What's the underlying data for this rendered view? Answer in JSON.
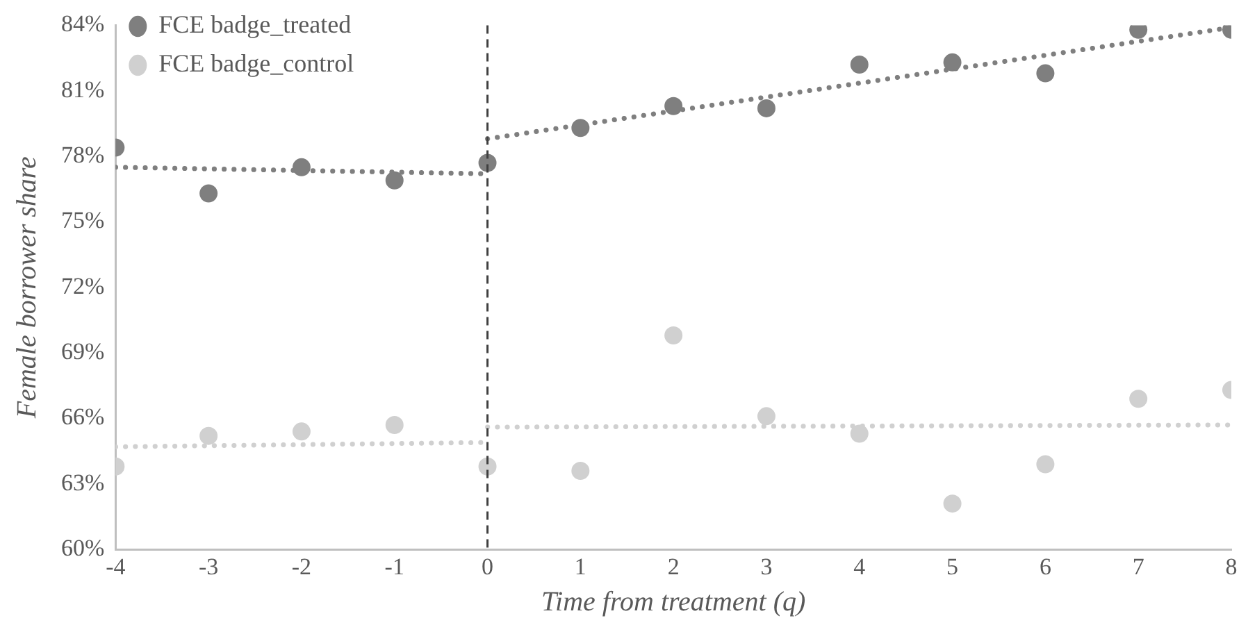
{
  "chart_data": {
    "type": "scatter",
    "xlabel": "Time from treatment (q)",
    "ylabel": "Female borrower share",
    "x": [
      -4,
      -3,
      -2,
      -1,
      0,
      1,
      2,
      3,
      4,
      5,
      6,
      7,
      8
    ],
    "series": [
      {
        "name": "FCE badge_treated",
        "color": "#7f7f7f",
        "values": [
          78.4,
          76.3,
          77.5,
          76.9,
          77.7,
          79.3,
          80.3,
          80.2,
          82.2,
          82.3,
          81.8,
          83.8,
          83.8
        ]
      },
      {
        "name": "FCE badge_control",
        "color": "#d0d0d0",
        "values": [
          63.8,
          65.2,
          65.4,
          65.7,
          63.8,
          63.6,
          69.8,
          66.1,
          65.3,
          62.1,
          63.9,
          66.9,
          67.3
        ]
      },
      {
        "type": "line",
        "color": "#7f7f7f",
        "x": [
          -4,
          0
        ],
        "values": [
          77.5,
          77.2
        ],
        "line_style": "dotted",
        "marker": "none"
      },
      {
        "type": "line",
        "color": "#7f7f7f",
        "x": [
          0,
          8
        ],
        "values": [
          78.8,
          83.9
        ],
        "line_style": "dotted",
        "marker": "none"
      },
      {
        "type": "line",
        "color": "#d0d0d0",
        "x": [
          -4,
          0
        ],
        "values": [
          64.7,
          64.9
        ],
        "line_style": "dotted",
        "marker": "none"
      },
      {
        "type": "line",
        "color": "#d0d0d0",
        "x": [
          0,
          8
        ],
        "values": [
          65.6,
          65.7
        ],
        "line_style": "dotted",
        "marker": "none"
      }
    ],
    "marker": "circle",
    "xlim": [
      -4,
      8
    ],
    "xticks": [
      -4,
      -3,
      -2,
      -1,
      0,
      1,
      2,
      3,
      4,
      5,
      6,
      7,
      8
    ],
    "ylim": [
      60,
      84
    ],
    "yticks": [
      {
        "value": 60,
        "label": "60%"
      },
      {
        "value": 63,
        "label": "63%"
      },
      {
        "value": 66,
        "label": "66%"
      },
      {
        "value": 69,
        "label": "69%"
      },
      {
        "value": 72,
        "label": "72%"
      },
      {
        "value": 75,
        "label": "75%"
      },
      {
        "value": 78,
        "label": "78%"
      },
      {
        "value": 81,
        "label": "81%"
      },
      {
        "value": 84,
        "label": "84%"
      }
    ],
    "ref_lines": [
      {
        "axis": "x",
        "value": 0,
        "color": "#404040",
        "line_style": "dashed"
      }
    ],
    "grid": false,
    "legend": "top left"
  }
}
